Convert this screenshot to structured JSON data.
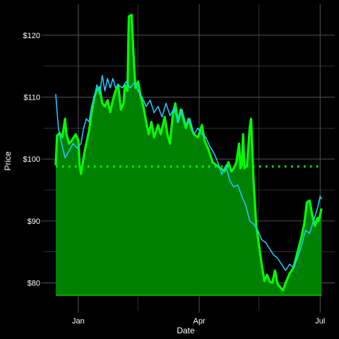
{
  "chart_data": {
    "type": "area",
    "xlabel": "Date",
    "ylabel": "Price",
    "xlim": [
      "2023-12-06",
      "2024-07-12"
    ],
    "ylim": [
      75.5,
      125
    ],
    "x_ticks": [
      {
        "date": "2024-01-01",
        "label": "Jan"
      },
      {
        "date": "2024-04-01",
        "label": "Apr"
      },
      {
        "date": "2024-07-01",
        "label": "Jul"
      }
    ],
    "x_minor_grid": [
      "2024-02-15",
      "2024-05-16"
    ],
    "y_ticks": [
      {
        "value": 80,
        "label": "$80"
      },
      {
        "value": 90,
        "label": "$90"
      },
      {
        "value": 100,
        "label": "$100"
      },
      {
        "value": 110,
        "label": "$110"
      },
      {
        "value": 120,
        "label": "$120"
      }
    ],
    "y_minor_grid": [
      85,
      95,
      105,
      115
    ],
    "grid": true,
    "legend": "none",
    "colors": {
      "background": "#000000",
      "grid": "#4d4d4d",
      "area_fill": "#008000",
      "area_line": "#00ff00",
      "reference_line": "#00ff00",
      "second_line": "#1ec8ff",
      "text": "#ffffff"
    },
    "reference_line": {
      "value": 98.8,
      "style": "dotted"
    },
    "area_baseline": 78,
    "series": [
      {
        "role": "area",
        "points": [
          [
            "2023-12-15",
            99.0
          ],
          [
            "2023-12-16",
            103.8
          ],
          [
            "2023-12-18",
            104.2
          ],
          [
            "2023-12-20",
            103.5
          ],
          [
            "2023-12-22",
            106.5
          ],
          [
            "2023-12-23",
            104.0
          ],
          [
            "2023-12-25",
            102.5
          ],
          [
            "2023-12-27",
            103.0
          ],
          [
            "2023-12-30",
            104.0
          ],
          [
            "2024-01-01",
            103.0
          ],
          [
            "2024-01-02",
            99.0
          ],
          [
            "2024-01-03",
            97.6
          ],
          [
            "2024-01-04",
            99.0
          ],
          [
            "2024-01-06",
            101.5
          ],
          [
            "2024-01-09",
            104.5
          ],
          [
            "2024-01-11",
            107.5
          ],
          [
            "2024-01-13",
            110.0
          ],
          [
            "2024-01-15",
            111.2
          ],
          [
            "2024-01-17",
            111.6
          ],
          [
            "2024-01-19",
            109.0
          ],
          [
            "2024-01-21",
            108.5
          ],
          [
            "2024-01-23",
            109.5
          ],
          [
            "2024-01-25",
            107.6
          ],
          [
            "2024-01-27",
            109.5
          ],
          [
            "2024-01-29",
            111.0
          ],
          [
            "2024-01-31",
            112.0
          ],
          [
            "2024-02-02",
            108.0
          ],
          [
            "2024-02-04",
            109.0
          ],
          [
            "2024-02-05",
            112.0
          ],
          [
            "2024-02-07",
            111.0
          ],
          [
            "2024-02-08",
            123.0
          ],
          [
            "2024-02-10",
            123.3
          ],
          [
            "2024-02-12",
            115.0
          ],
          [
            "2024-02-13",
            111.5
          ],
          [
            "2024-02-15",
            112.5
          ],
          [
            "2024-02-17",
            110.0
          ],
          [
            "2024-02-19",
            108.5
          ],
          [
            "2024-02-21",
            106.0
          ],
          [
            "2024-02-23",
            104.0
          ],
          [
            "2024-02-25",
            106.0
          ],
          [
            "2024-02-27",
            103.5
          ],
          [
            "2024-03-01",
            105.5
          ],
          [
            "2024-03-03",
            104.0
          ],
          [
            "2024-03-06",
            106.8
          ],
          [
            "2024-03-08",
            104.0
          ],
          [
            "2024-03-10",
            102.5
          ],
          [
            "2024-03-12",
            107.0
          ],
          [
            "2024-03-14",
            109.0
          ],
          [
            "2024-03-16",
            106.0
          ],
          [
            "2024-03-18",
            108.0
          ],
          [
            "2024-03-20",
            106.5
          ],
          [
            "2024-03-22",
            105.0
          ],
          [
            "2024-03-24",
            106.5
          ],
          [
            "2024-03-26",
            105.0
          ],
          [
            "2024-03-28",
            104.0
          ],
          [
            "2024-03-31",
            103.5
          ],
          [
            "2024-04-03",
            105.5
          ],
          [
            "2024-04-05",
            103.0
          ],
          [
            "2024-04-08",
            101.5
          ],
          [
            "2024-04-11",
            99.5
          ],
          [
            "2024-04-14",
            99.0
          ],
          [
            "2024-04-17",
            98.5
          ],
          [
            "2024-04-20",
            98.0
          ],
          [
            "2024-04-23",
            99.5
          ],
          [
            "2024-04-25",
            98.0
          ],
          [
            "2024-04-27",
            98.5
          ],
          [
            "2024-04-29",
            99.5
          ],
          [
            "2024-05-01",
            102.5
          ],
          [
            "2024-05-02",
            98.5
          ],
          [
            "2024-05-03",
            99.0
          ],
          [
            "2024-05-04",
            104.0
          ],
          [
            "2024-05-05",
            98.5
          ],
          [
            "2024-05-07",
            99.0
          ],
          [
            "2024-05-09",
            105.0
          ],
          [
            "2024-05-10",
            106.5
          ],
          [
            "2024-05-12",
            96.0
          ],
          [
            "2024-05-14",
            89.0
          ],
          [
            "2024-05-16",
            86.0
          ],
          [
            "2024-05-18",
            83.0
          ],
          [
            "2024-05-20",
            80.3
          ],
          [
            "2024-05-22",
            81.3
          ],
          [
            "2024-05-24",
            80.2
          ],
          [
            "2024-05-26",
            80.0
          ],
          [
            "2024-05-28",
            82.0
          ],
          [
            "2024-05-30",
            79.8
          ],
          [
            "2024-06-01",
            79.3
          ],
          [
            "2024-06-03",
            78.8
          ],
          [
            "2024-06-05",
            80.0
          ],
          [
            "2024-06-08",
            81.5
          ],
          [
            "2024-06-11",
            82.5
          ],
          [
            "2024-06-14",
            85.0
          ],
          [
            "2024-06-17",
            87.5
          ],
          [
            "2024-06-19",
            89.5
          ],
          [
            "2024-06-21",
            93.0
          ],
          [
            "2024-06-23",
            93.3
          ],
          [
            "2024-06-25",
            91.0
          ],
          [
            "2024-06-27",
            89.2
          ],
          [
            "2024-06-29",
            90.5
          ],
          [
            "2024-06-30",
            90.0
          ],
          [
            "2024-07-01",
            91.0
          ],
          [
            "2024-07-02",
            92.0
          ]
        ]
      },
      {
        "role": "line",
        "points": [
          [
            "2023-12-15",
            110.5
          ],
          [
            "2023-12-17",
            105.0
          ],
          [
            "2023-12-20",
            102.0
          ],
          [
            "2023-12-22",
            100.2
          ],
          [
            "2023-12-25",
            101.3
          ],
          [
            "2023-12-28",
            102.5
          ],
          [
            "2023-12-31",
            101.8
          ],
          [
            "2024-01-03",
            102.5
          ],
          [
            "2024-01-05",
            105.0
          ],
          [
            "2024-01-07",
            106.5
          ],
          [
            "2024-01-09",
            106.0
          ],
          [
            "2024-01-11",
            108.5
          ],
          [
            "2024-01-13",
            110.0
          ],
          [
            "2024-01-15",
            112.0
          ],
          [
            "2024-01-17",
            110.5
          ],
          [
            "2024-01-19",
            113.5
          ],
          [
            "2024-01-21",
            111.0
          ],
          [
            "2024-01-23",
            113.0
          ],
          [
            "2024-01-25",
            111.5
          ],
          [
            "2024-01-27",
            113.0
          ],
          [
            "2024-01-29",
            111.5
          ],
          [
            "2024-01-31",
            112.0
          ],
          [
            "2024-02-03",
            111.5
          ],
          [
            "2024-02-06",
            112.5
          ],
          [
            "2024-02-09",
            111.5
          ],
          [
            "2024-02-12",
            112.3
          ],
          [
            "2024-02-15",
            111.0
          ],
          [
            "2024-02-18",
            110.0
          ],
          [
            "2024-02-21",
            108.5
          ],
          [
            "2024-02-24",
            109.5
          ],
          [
            "2024-02-27",
            107.5
          ],
          [
            "2024-03-01",
            108.5
          ],
          [
            "2024-03-04",
            106.8
          ],
          [
            "2024-03-07",
            109.0
          ],
          [
            "2024-03-10",
            107.0
          ],
          [
            "2024-03-13",
            108.2
          ],
          [
            "2024-03-16",
            106.0
          ],
          [
            "2024-03-19",
            108.0
          ],
          [
            "2024-03-22",
            105.5
          ],
          [
            "2024-03-25",
            106.5
          ],
          [
            "2024-03-28",
            104.0
          ],
          [
            "2024-03-31",
            105.0
          ],
          [
            "2024-04-03",
            104.0
          ],
          [
            "2024-04-06",
            103.5
          ],
          [
            "2024-04-09",
            102.0
          ],
          [
            "2024-04-12",
            101.0
          ],
          [
            "2024-04-15",
            99.5
          ],
          [
            "2024-04-18",
            97.5
          ],
          [
            "2024-04-21",
            99.0
          ],
          [
            "2024-04-24",
            96.5
          ],
          [
            "2024-04-27",
            95.5
          ],
          [
            "2024-04-30",
            95.8
          ],
          [
            "2024-05-03",
            94.0
          ],
          [
            "2024-05-06",
            92.5
          ],
          [
            "2024-05-09",
            90.0
          ],
          [
            "2024-05-12",
            89.5
          ],
          [
            "2024-05-15",
            88.5
          ],
          [
            "2024-05-18",
            87.0
          ],
          [
            "2024-05-21",
            86.5
          ],
          [
            "2024-05-24",
            85.5
          ],
          [
            "2024-05-27",
            84.5
          ],
          [
            "2024-05-30",
            84.0
          ],
          [
            "2024-06-02",
            83.0
          ],
          [
            "2024-06-05",
            82.0
          ],
          [
            "2024-06-08",
            83.0
          ],
          [
            "2024-06-11",
            82.5
          ],
          [
            "2024-06-14",
            84.0
          ],
          [
            "2024-06-17",
            86.0
          ],
          [
            "2024-06-20",
            88.5
          ],
          [
            "2024-06-23",
            88.0
          ],
          [
            "2024-06-26",
            90.0
          ],
          [
            "2024-06-29",
            92.0
          ],
          [
            "2024-07-01",
            94.0
          ],
          [
            "2024-07-02",
            93.5
          ]
        ]
      }
    ]
  }
}
